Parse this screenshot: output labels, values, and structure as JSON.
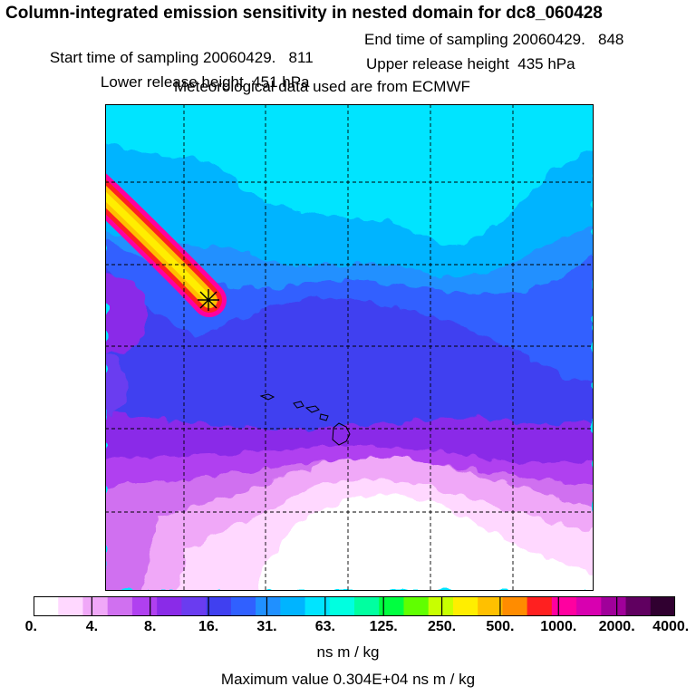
{
  "chart_data": {
    "type": "heatmap",
    "title": "Column-integrated emission sensitivity in nested domain for dc8_060428",
    "start_label": "Start time of sampling 20060429.   811",
    "end_label": "End time of sampling 20060429.   848",
    "lower_label": "Lower release height  451 hPa",
    "upper_label": "Upper release height  435 hPa",
    "met_label": "Meteorological data used are from ECMWF",
    "colorbar": {
      "tick_labels": [
        "0.",
        "4.",
        "8.",
        "16.",
        "31.",
        "63.",
        "125.",
        "250.",
        "500.",
        "1000.",
        "2000.",
        "4000."
      ],
      "units": "ns m / kg",
      "colors": [
        "#ffffff",
        "#ffd8ff",
        "#f0a8f8",
        "#d070f0",
        "#b040f0",
        "#8a2be8",
        "#6a3cf0",
        "#4040f0",
        "#3060ff",
        "#2090ff",
        "#00b4ff",
        "#00e4ff",
        "#00ffe0",
        "#00ffa0",
        "#00ff40",
        "#60ff00",
        "#c8ff00",
        "#ffee00",
        "#ffc000",
        "#ff8c00",
        "#ff2020",
        "#ff00a0",
        "#d800b0",
        "#a0009a",
        "#600060",
        "#300030"
      ]
    },
    "max_value_label": "Maximum value  0.304E+04 ns m / kg",
    "release_marker": "*"
  }
}
